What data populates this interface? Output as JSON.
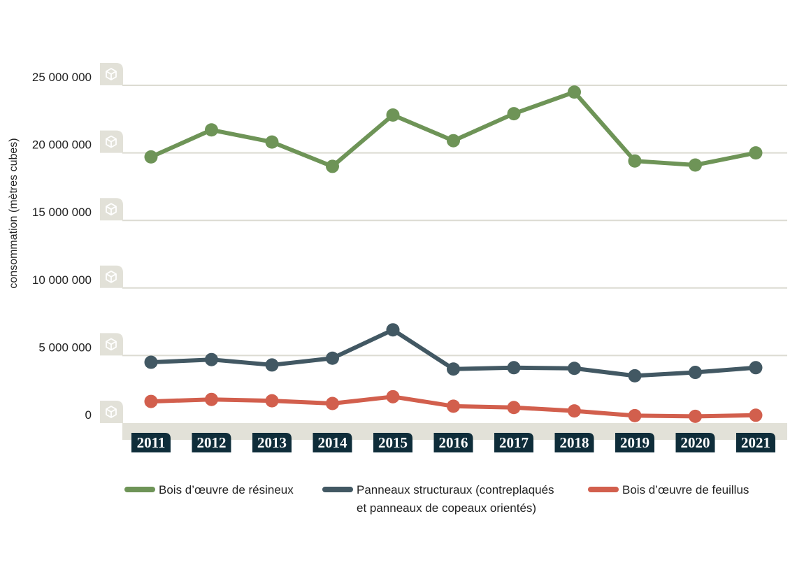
{
  "chart_data": {
    "type": "line",
    "title": "",
    "xlabel": "",
    "ylabel": "consommation (mètres cubes)",
    "ylim": [
      0,
      25000000
    ],
    "y_ticks": [
      0,
      5000000,
      10000000,
      15000000,
      20000000,
      25000000
    ],
    "y_tick_labels": [
      "0",
      "5 000 000",
      "10 000 000",
      "15 000 000",
      "20 000 000",
      "25 000 000"
    ],
    "categories": [
      "2011",
      "2012",
      "2013",
      "2014",
      "2015",
      "2016",
      "2017",
      "2018",
      "2019",
      "2020",
      "2021"
    ],
    "grid": true,
    "legend_position": "bottom",
    "series": [
      {
        "name": "Bois d’œuvre de résineux",
        "color": "#6e9457",
        "values": [
          19700000,
          21700000,
          20800000,
          19000000,
          22800000,
          20900000,
          22900000,
          24500000,
          19400000,
          19100000,
          20000000
        ]
      },
      {
        "name": "Panneaux structuraux (contreplaqués et panneaux de copeaux orientés)",
        "legend_lines": [
          "Panneaux structuraux (contreplaqués",
          "et panneaux de copeaux orientés)"
        ],
        "color": "#425863",
        "values": [
          4500000,
          4700000,
          4300000,
          4800000,
          6900000,
          4000000,
          4100000,
          4050000,
          3500000,
          3750000,
          4100000
        ]
      },
      {
        "name": "Bois d’œuvre de feuillus",
        "color": "#d25f4d",
        "values": [
          1600000,
          1750000,
          1650000,
          1450000,
          1950000,
          1250000,
          1150000,
          900000,
          550000,
          500000,
          580000
        ]
      }
    ],
    "colors": {
      "grid": "#dcdbd2",
      "baseline_band": "#e2e1d8",
      "year_badge": "#0f2d3a",
      "icon": "#ffffff"
    }
  }
}
